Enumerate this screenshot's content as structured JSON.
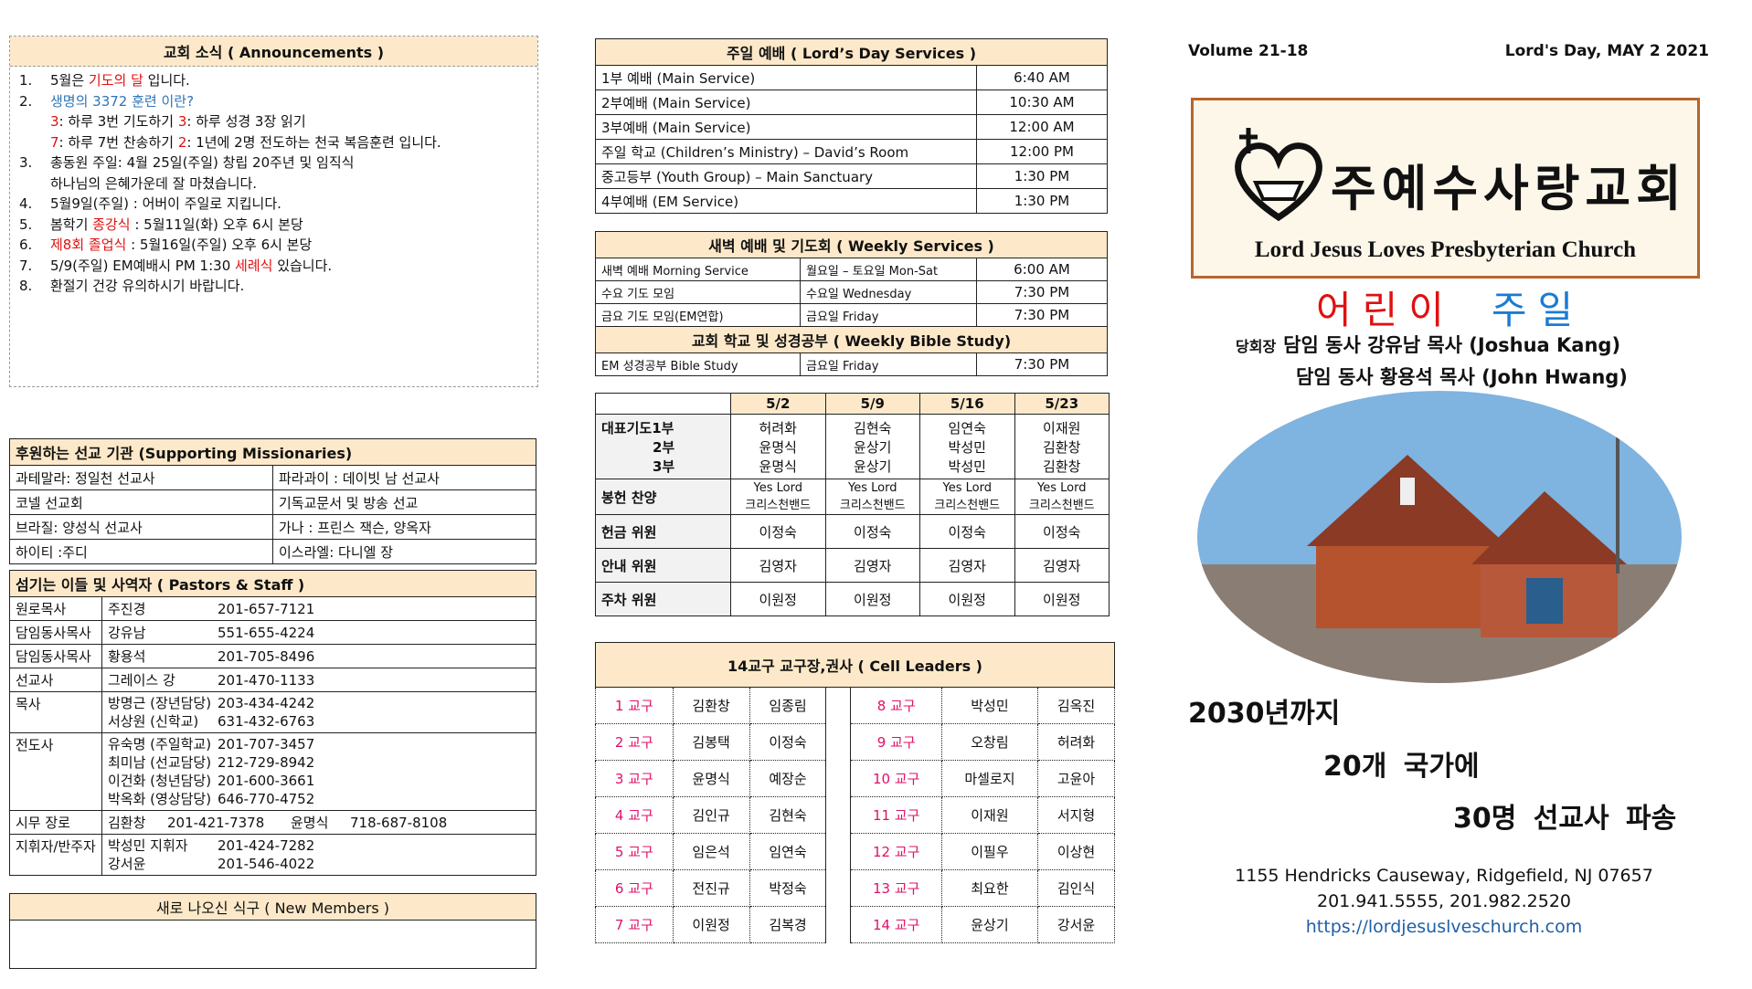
{
  "announcements": {
    "title": "교회 소식  ( Announcements )",
    "lines": [
      {
        "num": "1.",
        "parts": [
          {
            "text": "5월은 "
          },
          {
            "text": "기도의 달",
            "color": "#e01010"
          },
          {
            "text": " 입니다."
          }
        ]
      },
      {
        "num": "2.",
        "parts": [
          {
            "text": "생명의 3372 훈련 이란?",
            "color": "#2e75b6"
          }
        ]
      },
      {
        "parts": [
          {
            "text": "3",
            "color": "#e01010"
          },
          {
            "text": ": 하루 3번 기도하기   "
          },
          {
            "text": "3",
            "color": "#e01010"
          },
          {
            "text": ": 하루 성경 3장 읽기"
          }
        ]
      },
      {
        "parts": [
          {
            "text": "7",
            "color": "#e01010"
          },
          {
            "text": ": 하루 7번 찬송하기   "
          },
          {
            "text": "2",
            "color": "#e01010"
          },
          {
            "text": ": 1년에 2명 전도하는 천국 복음훈련 입니다."
          }
        ]
      },
      {
        "num": "3.",
        "parts": [
          {
            "text": "총동원 주일: 4월 25일(주일) 창립 20주년 및 임직식"
          }
        ]
      },
      {
        "parts": [
          {
            "text": "하나님의 은혜가운데 잘 마쳤습니다."
          }
        ]
      },
      {
        "num": "4.",
        "parts": [
          {
            "text": "5월9일(주일) : 어버이 주일로 지킵니다."
          }
        ]
      },
      {
        "num": "5.",
        "parts": [
          {
            "text": "봄학기 "
          },
          {
            "text": "종강식",
            "color": "#e01010"
          },
          {
            "text": " : 5월11일(화) 오후 6시  본당"
          }
        ]
      },
      {
        "num": "6.",
        "parts": [
          {
            "text": "제8회 졸업식",
            "color": "#e01010"
          },
          {
            "text": " : 5월16일(주일) 오후 6시 본당"
          }
        ]
      },
      {
        "num": "7.",
        "parts": [
          {
            "text": "5/9(주일) EM예배시 PM 1:30 "
          },
          {
            "text": "세례식",
            "color": "#e01010"
          },
          {
            "text": " 있습니다."
          }
        ]
      },
      {
        "num": "8.",
        "parts": [
          {
            "text": "환절기 건강 유의하시기 바랍니다."
          }
        ]
      }
    ]
  },
  "missionaries": {
    "title": "후원하는 선교 기관 (Supporting Missionaries)",
    "rows": [
      [
        "과테말라: 정일천 선교사",
        "파라과이 : 데이빗 남 선교사"
      ],
      [
        "코넬 선교회",
        "기독교문서 및 방송 선교"
      ],
      [
        "브라질: 양성식 선교사",
        "가나 : 프린스 잭슨, 양옥자"
      ],
      [
        "하이티 :주디",
        "이스라엘: 다니엘 장"
      ]
    ]
  },
  "staff": {
    "title": "섬기는 이들 및 사역자 ( Pastors & Staff )",
    "rows": [
      {
        "role": "원로목사",
        "lines": [
          [
            "주진경",
            "201-657-7121"
          ]
        ]
      },
      {
        "role": "담임동사목사",
        "lines": [
          [
            "강유남",
            "551-655-4224"
          ]
        ]
      },
      {
        "role": "담임동사목사",
        "lines": [
          [
            "황용석",
            "201-705-8496"
          ]
        ]
      },
      {
        "role": "선교사",
        "lines": [
          [
            "그레이스 강",
            "201-470-1133"
          ]
        ]
      },
      {
        "role": "목사",
        "lines": [
          [
            "방명근 (장년담당)",
            "203-434-4242"
          ],
          [
            "서상원 (신학교)",
            "631-432-6763"
          ]
        ]
      },
      {
        "role": "전도사",
        "lines": [
          [
            "유숙명 (주일학교)",
            "201-707-3457"
          ],
          [
            "최미남 (선교담당)",
            "212-729-8942"
          ],
          [
            "이건화 (청년담당)",
            "201-600-3661"
          ],
          [
            "박옥화 (영상담당)",
            "646-770-4752"
          ]
        ]
      },
      {
        "role": "시무 장로",
        "lines": [
          [
            "김환창",
            "201-421-7378",
            "윤명식",
            "718-687-8108"
          ]
        ]
      },
      {
        "role": "지휘자/반주자",
        "lines": [
          [
            "박성민 지휘자",
            "201-424-7282"
          ],
          [
            "강서윤",
            "201-546-4022"
          ]
        ]
      }
    ]
  },
  "new_members": {
    "title": "새로 나오신 식구 ( New Members )"
  },
  "services": {
    "title": "주일 예배  ( Lord’s Day Services )",
    "rows": [
      [
        "1부 예배 (Main Service)",
        "6:40 AM"
      ],
      [
        "2부예배 (Main Service)",
        "10:30 AM"
      ],
      [
        "3부예배 (Main Service)",
        "12:00 AM"
      ],
      [
        "주일 학교 (Children’s Ministry) – David’s Room",
        "12:00 PM"
      ],
      [
        "중고등부 (Youth Group) – Main Sanctuary",
        "1:30 PM"
      ],
      [
        "4부예배 (EM Service)",
        "1:30 PM"
      ]
    ]
  },
  "weekly": {
    "title": "새벽 예배 및 기도회  ( Weekly Services )",
    "rows": [
      [
        "새벽 예배 Morning Service",
        "월요일 – 토요일 Mon-Sat",
        "6:00 AM"
      ],
      [
        "수요 기도 모임",
        "수요일 Wednesday",
        "7:30 PM"
      ],
      [
        "금요 기도 모임(EM연합)",
        "금요일 Friday",
        "7:30 PM"
      ]
    ]
  },
  "bible_study": {
    "title": "교회 학교 및 성경공부 ( Weekly Bible Study)",
    "rows": [
      [
        "EM 성경공부 Bible Study",
        "금요일 Friday",
        "7:30 PM"
      ]
    ]
  },
  "duty": {
    "dates": [
      "5/2",
      "5/9",
      "5/16",
      "5/23"
    ],
    "rows": [
      {
        "label": [
          "대표기도1부",
          "2부",
          "3부"
        ],
        "cells": [
          [
            "허려화",
            "윤명식",
            "윤명식"
          ],
          [
            "김현숙",
            "윤상기",
            "윤상기"
          ],
          [
            "임연숙",
            "박성민",
            "박성민"
          ],
          [
            "이재원",
            "김환창",
            "김환창"
          ]
        ]
      },
      {
        "label": [
          "봉헌 찬양"
        ],
        "cells": [
          [
            "Yes Lord",
            "크리스천밴드"
          ],
          [
            "Yes Lord",
            "크리스천밴드"
          ],
          [
            "Yes Lord",
            "크리스천밴드"
          ],
          [
            "Yes Lord",
            "크리스천밴드"
          ]
        ]
      },
      {
        "label": [
          "헌금 위원"
        ],
        "cells": [
          [
            "이정숙"
          ],
          [
            "이정숙"
          ],
          [
            "이정숙"
          ],
          [
            "이정숙"
          ]
        ]
      },
      {
        "label": [
          "안내 위원"
        ],
        "cells": [
          [
            "김영자"
          ],
          [
            "김영자"
          ],
          [
            "김영자"
          ],
          [
            "김영자"
          ]
        ]
      },
      {
        "label": [
          "주차 위원"
        ],
        "cells": [
          [
            "이원정"
          ],
          [
            "이원정"
          ],
          [
            "이원정"
          ],
          [
            "이원정"
          ]
        ]
      }
    ]
  },
  "cell_leaders": {
    "title": "14교구 교구장,권사    ( Cell Leaders )",
    "left": [
      [
        "1 교구",
        "김환창",
        "임종림"
      ],
      [
        "2 교구",
        "김봉택",
        "이정숙"
      ],
      [
        "3 교구",
        "윤명식",
        "예장순"
      ],
      [
        "4 교구",
        "김인규",
        "김현숙"
      ],
      [
        "5 교구",
        "임은석",
        "임연숙"
      ],
      [
        "6 교구",
        "전진규",
        "박정숙"
      ],
      [
        "7 교구",
        "이원정",
        "김복경"
      ]
    ],
    "right": [
      [
        "8 교구",
        "박성민",
        "김옥진"
      ],
      [
        "9 교구",
        "오창림",
        "허려화"
      ],
      [
        "10 교구",
        "마셀로지",
        "고윤아"
      ],
      [
        "11 교구",
        "이재원",
        "서지형"
      ],
      [
        "12 교구",
        "이필우",
        "이상현"
      ],
      [
        "13 교구",
        "최요한",
        "김인식"
      ],
      [
        "14 교구",
        "윤상기",
        "강서윤"
      ]
    ]
  },
  "header": {
    "volume": "Volume 21-18",
    "date": "Lord's Day, MAY 2 2021"
  },
  "logo": {
    "korean": "주예수사랑교회",
    "english": "Lord Jesus Loves Presbyterian Church"
  },
  "theme": {
    "word1": "어린이",
    "word2": "주일"
  },
  "pastors": {
    "prefix": "당회장",
    "line1": "담임 동사 강유남 목사 (Joshua Kang)",
    "line2": "담임 동사 황용석 목사 (John Hwang)"
  },
  "mission": {
    "line1": "2030년까지",
    "line2": "20개 국가에",
    "line3": "30명 선교사 파송"
  },
  "contact": {
    "address": "1155 Hendricks Causeway, Ridgefield, NJ 07657",
    "phones": "201.941.5555, 201.982.2520",
    "url": "https://lordjesuslveschurch.com"
  }
}
